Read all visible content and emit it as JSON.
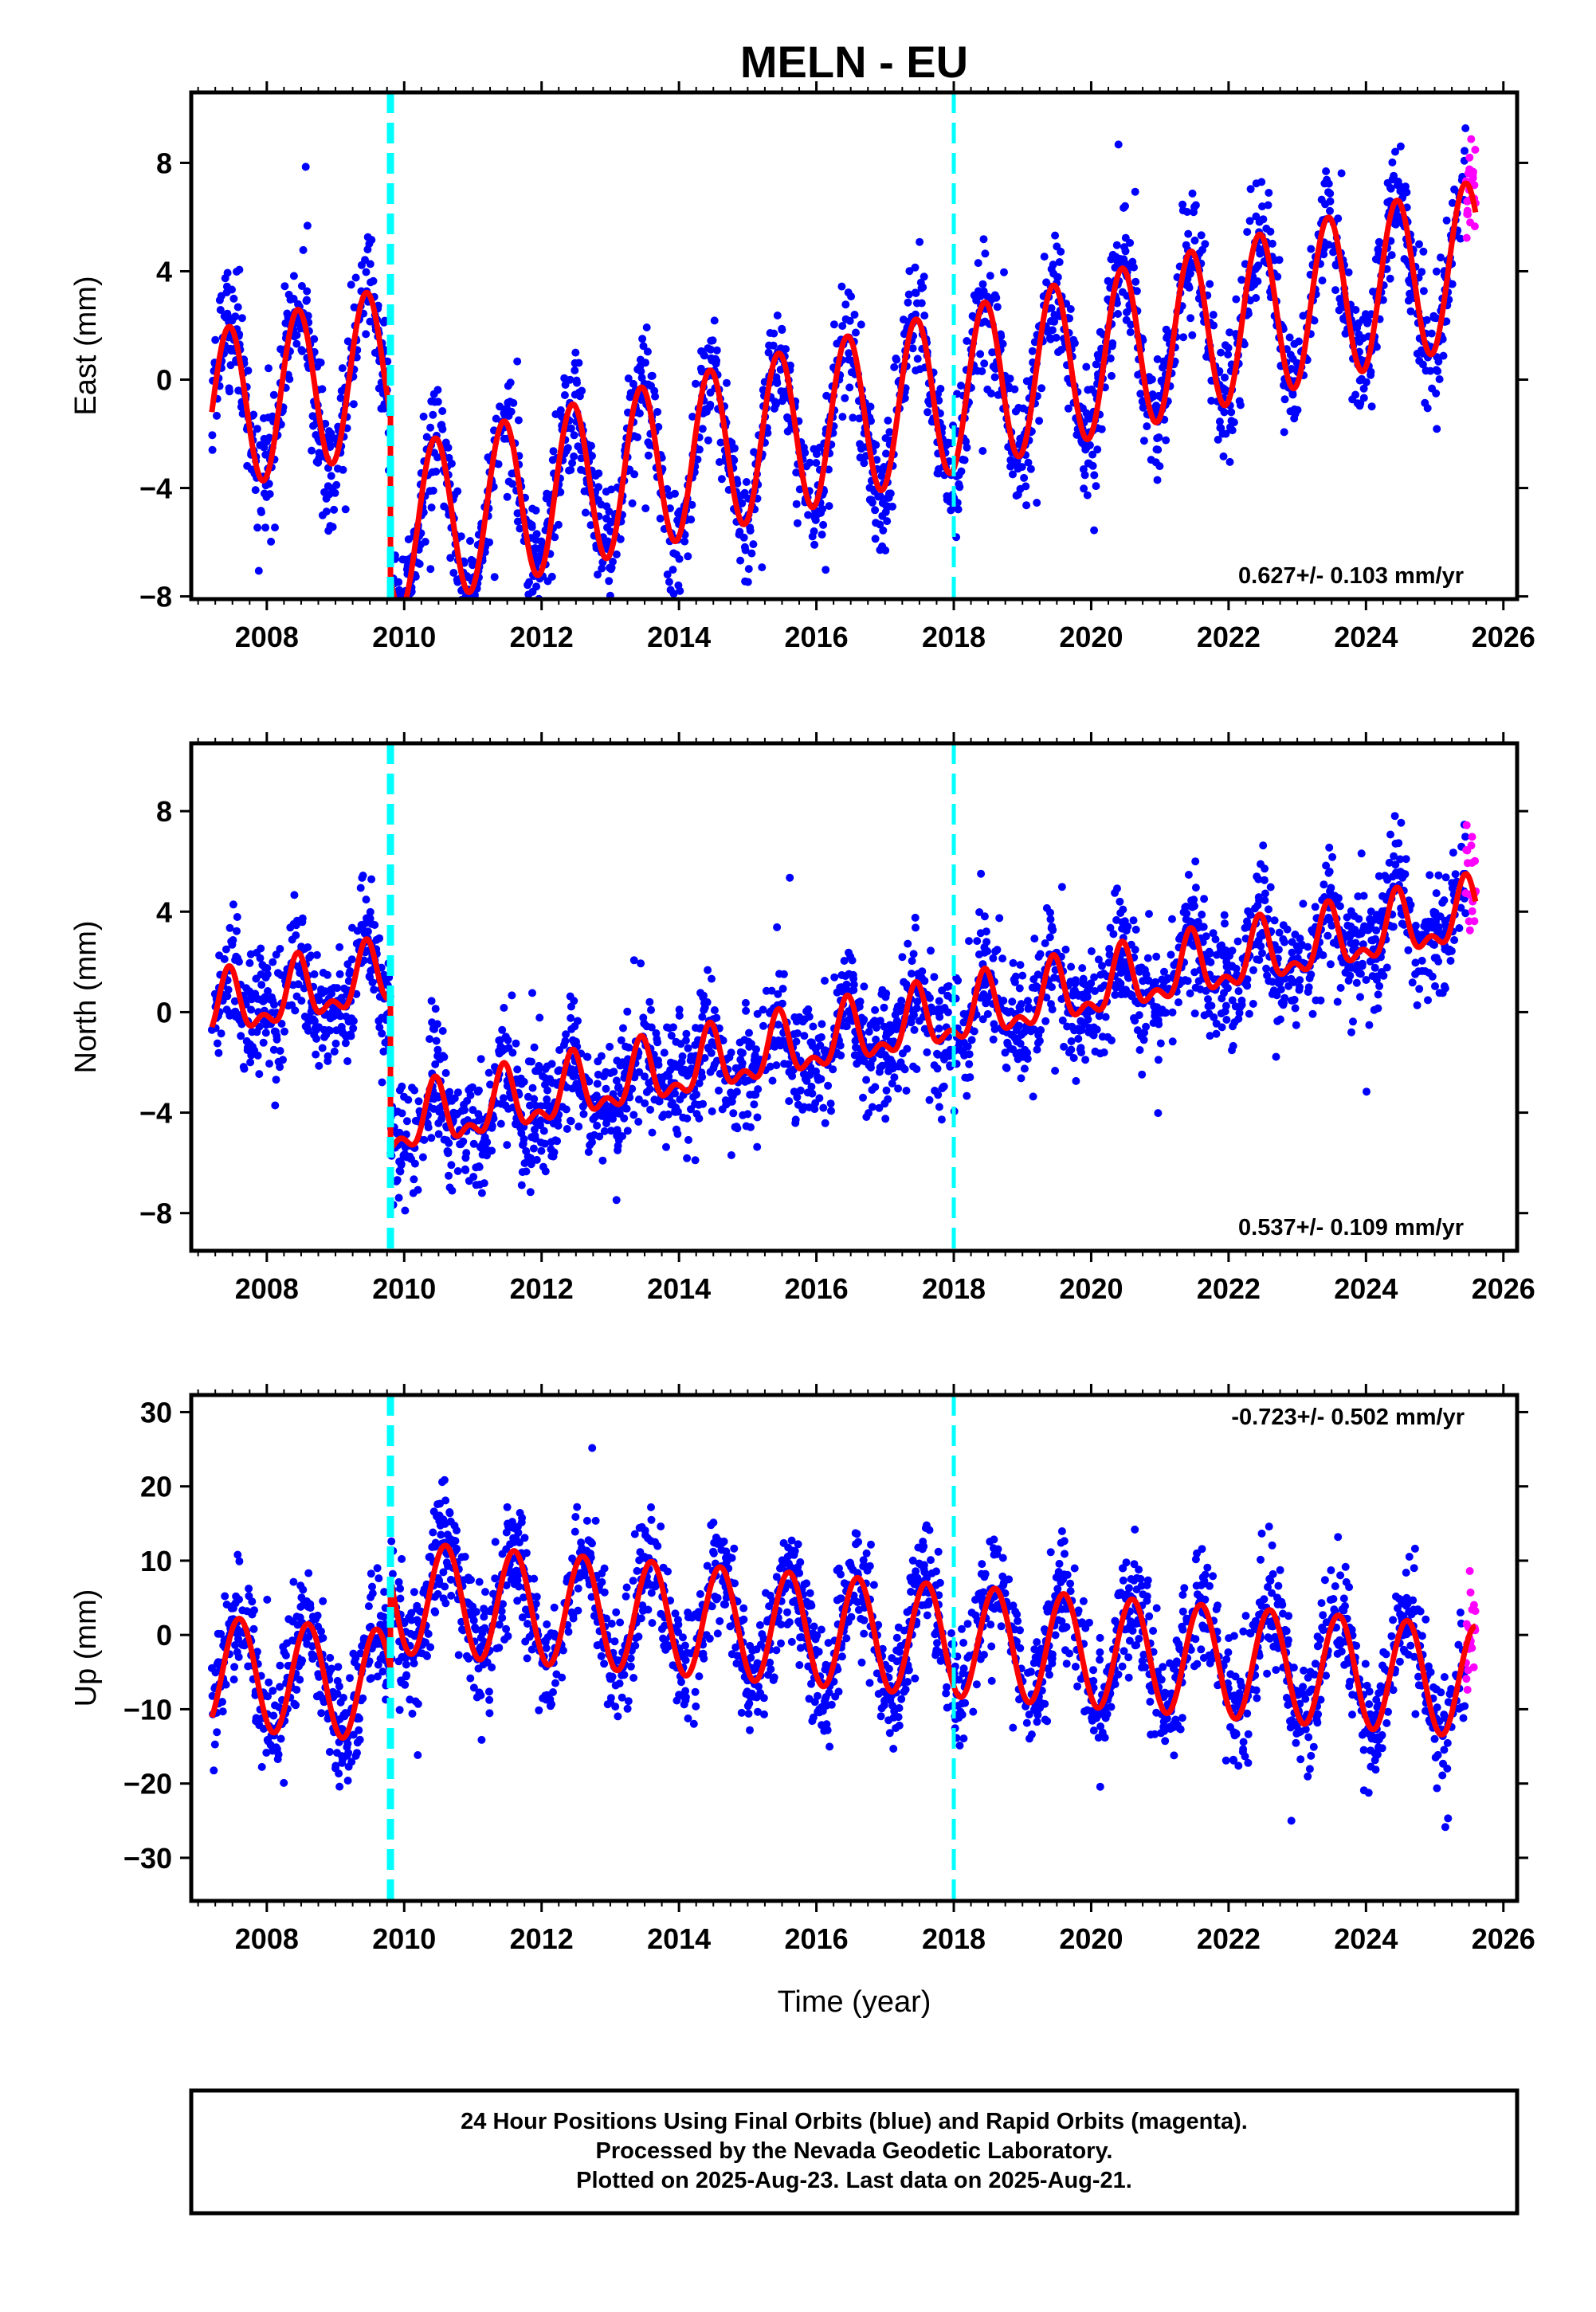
{
  "title": "MELN - EU",
  "x_axis": {
    "label": "Time (year)",
    "range": [
      2006.9,
      2026.2
    ],
    "ticks": [
      2008,
      2010,
      2012,
      2014,
      2016,
      2018,
      2020,
      2022,
      2024,
      2026
    ]
  },
  "colors": {
    "final_orbits": "#0000ff",
    "rapid_orbits": "#ff00ff",
    "model_fit": "#ff0000",
    "event_line": "#00ffff",
    "frame": "#000000"
  },
  "event_lines": [
    2009.8,
    2018.0
  ],
  "footer": {
    "line1": "24 Hour Positions Using Final Orbits (blue) and Rapid Orbits (magenta).",
    "line2": "Processed by the Nevada Geodetic Laboratory.",
    "line3": "Plotted on 2025-Aug-23. Last data on 2025-Aug-21."
  },
  "chart_data": [
    {
      "type": "scatter",
      "component": "east",
      "ylabel": "East (mm)",
      "ylim": [
        -8.1,
        10.6
      ],
      "yticks": [
        -8,
        -4,
        0,
        4,
        8
      ],
      "rate_label": "0.627+/- 0.103 mm/yr",
      "model": {
        "start": 2007.2,
        "end": 2025.6,
        "offset_at_start": -1.2,
        "rate": 0.627,
        "annual_amplitude": 3.0,
        "annual_peak": 0.45,
        "semiannual_amplitude": 0.0,
        "semiannual_peak": 0.2,
        "step_time": 2009.8,
        "step": -6.0,
        "end_value": 5.0,
        "noise": 1.1,
        "outlier_scale": 2.5
      },
      "series": [
        {
          "name": "Final Orbits",
          "color": "#0000ff"
        },
        {
          "name": "Rapid Orbits",
          "color": "#ff00ff",
          "start": 2025.45
        },
        {
          "name": "Model",
          "color": "#ff0000"
        }
      ]
    },
    {
      "type": "scatter",
      "component": "north",
      "ylabel": "North (mm)",
      "ylim": [
        -9.5,
        10.7
      ],
      "yticks": [
        -8,
        -4,
        0,
        4,
        8
      ],
      "rate_label": "0.537+/- 0.109 mm/yr",
      "model": {
        "start": 2007.2,
        "end": 2025.6,
        "offset_at_start": 0.0,
        "rate": 0.537,
        "annual_amplitude": 1.1,
        "annual_peak": 0.45,
        "semiannual_amplitude": 0.6,
        "semiannual_peak": 0.45,
        "step_time": 2009.8,
        "step": -6.0,
        "end_value": 5.0,
        "noise": 1.2,
        "outlier_scale": 3.0
      },
      "series": [
        {
          "name": "Final Orbits",
          "color": "#0000ff"
        },
        {
          "name": "Rapid Orbits",
          "color": "#ff00ff",
          "start": 2025.45
        },
        {
          "name": "Model",
          "color": "#ff0000"
        }
      ]
    },
    {
      "type": "scatter",
      "component": "up",
      "ylabel": "Up (mm)",
      "ylim": [
        -35.8,
        32.3
      ],
      "yticks": [
        -30,
        -20,
        -10,
        0,
        10,
        20,
        30
      ],
      "rate_label": "-0.723+/- 0.502 mm/yr",
      "model": {
        "start": 2007.2,
        "end": 2025.6,
        "offset_at_start": -5.0,
        "rate": -0.723,
        "annual_amplitude": 7.5,
        "annual_peak": 0.6,
        "semiannual_amplitude": 0.0,
        "semiannual_peak": 0.2,
        "step_time": 2009.8,
        "step": 12.0,
        "end_value": 3.0,
        "noise": 4.0,
        "outlier_scale": 2.8
      },
      "series": [
        {
          "name": "Final Orbits",
          "color": "#0000ff"
        },
        {
          "name": "Rapid Orbits",
          "color": "#ff00ff",
          "start": 2025.45
        },
        {
          "name": "Model",
          "color": "#ff0000"
        }
      ]
    }
  ]
}
